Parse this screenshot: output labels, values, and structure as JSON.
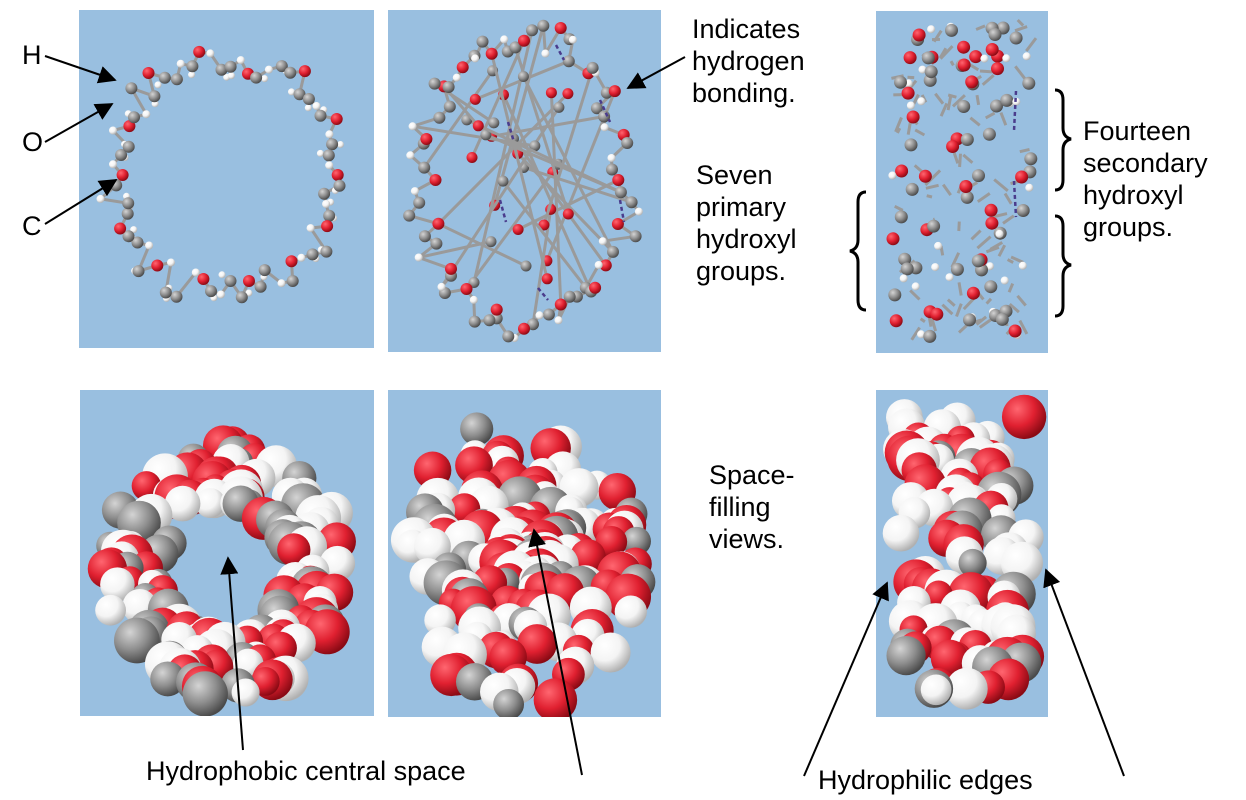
{
  "atom_labels": {
    "hydrogen": "H",
    "oxygen": "O",
    "carbon": "C"
  },
  "annotations": {
    "hydrogen_bonding": [
      "Indicates",
      "hydrogen",
      "bonding."
    ],
    "primary_hydroxyl": [
      "Seven",
      "primary",
      "hydroxyl",
      "groups."
    ],
    "secondary_hydroxyl": [
      "Fourteen",
      "secondary",
      "hydroxyl",
      "groups."
    ],
    "space_filling": [
      "Space-",
      "filling",
      "views."
    ],
    "hydrophobic": "Hydrophobic central space",
    "hydrophilic": "Hydrophilic edges"
  },
  "colors": {
    "panel_bg": "#99bfe0",
    "oxygen": "#e02030",
    "carbon": "#8e8e8e",
    "hydrogen": "#f4f4f4",
    "hbond": "#4a3c8c"
  }
}
